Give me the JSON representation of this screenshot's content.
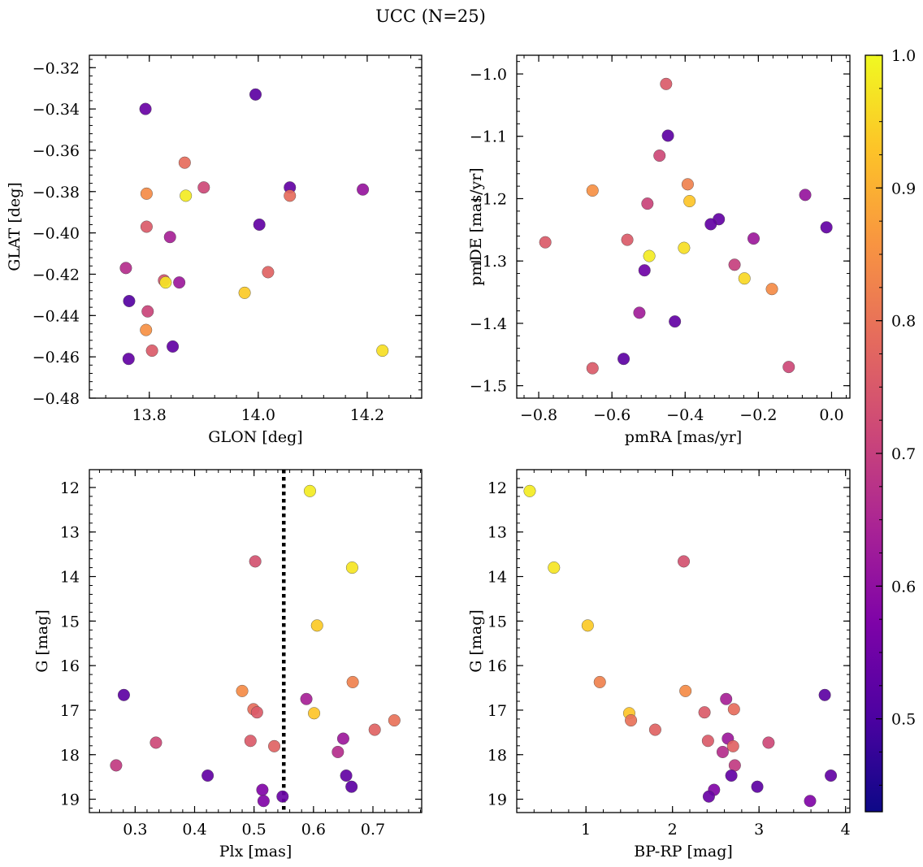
{
  "figure": {
    "title": "UCC (N=25)"
  },
  "colorbar": {
    "colormap": "plasma",
    "range": [
      0.43,
      1.0
    ],
    "ticks": [
      0.5,
      0.6,
      0.7,
      0.8,
      0.9,
      1.0
    ],
    "tick_labels": [
      "0.5",
      "0.6",
      "0.7",
      "0.8",
      "0.9",
      "1.0"
    ]
  },
  "chart_data": [
    {
      "type": "scatter",
      "xlabel": "GLON [deg]",
      "ylabel": "GLAT [deg]",
      "xlim": [
        13.69,
        14.3
      ],
      "ylim": [
        -0.48,
        -0.314
      ],
      "y_inverted": false,
      "xticks": [
        13.8,
        14.0,
        14.2
      ],
      "xtick_labels": [
        "13.8",
        "14.0",
        "14.2"
      ],
      "yticks": [
        -0.48,
        -0.46,
        -0.44,
        -0.42,
        -0.4,
        -0.38,
        -0.36,
        -0.34,
        -0.32
      ],
      "ytick_labels": [
        "−0.48",
        "−0.46",
        "−0.44",
        "−0.42",
        "−0.40",
        "−0.38",
        "−0.36",
        "−0.34",
        "−0.32"
      ],
      "points": [
        {
          "x": 13.793,
          "y": -0.34,
          "c": 0.48
        },
        {
          "x": 13.995,
          "y": -0.333,
          "c": 0.46
        },
        {
          "x": 13.865,
          "y": -0.366,
          "c": 0.76
        },
        {
          "x": 13.9,
          "y": -0.378,
          "c": 0.68
        },
        {
          "x": 14.058,
          "y": -0.378,
          "c": 0.47
        },
        {
          "x": 14.058,
          "y": -0.382,
          "c": 0.76
        },
        {
          "x": 13.795,
          "y": -0.381,
          "c": 0.82
        },
        {
          "x": 13.867,
          "y": -0.382,
          "c": 0.98
        },
        {
          "x": 14.192,
          "y": -0.379,
          "c": 0.56
        },
        {
          "x": 14.002,
          "y": -0.396,
          "c": 0.47
        },
        {
          "x": 13.795,
          "y": -0.397,
          "c": 0.72
        },
        {
          "x": 13.838,
          "y": -0.402,
          "c": 0.59
        },
        {
          "x": 13.757,
          "y": -0.417,
          "c": 0.62
        },
        {
          "x": 14.018,
          "y": -0.419,
          "c": 0.74
        },
        {
          "x": 13.827,
          "y": -0.423,
          "c": 0.7
        },
        {
          "x": 13.83,
          "y": -0.424,
          "c": 0.97
        },
        {
          "x": 13.855,
          "y": -0.424,
          "c": 0.57
        },
        {
          "x": 13.975,
          "y": -0.429,
          "c": 0.93
        },
        {
          "x": 13.763,
          "y": -0.433,
          "c": 0.45
        },
        {
          "x": 13.797,
          "y": -0.438,
          "c": 0.67
        },
        {
          "x": 13.794,
          "y": -0.447,
          "c": 0.83
        },
        {
          "x": 13.805,
          "y": -0.457,
          "c": 0.72
        },
        {
          "x": 13.843,
          "y": -0.455,
          "c": 0.47
        },
        {
          "x": 13.762,
          "y": -0.461,
          "c": 0.47
        },
        {
          "x": 14.228,
          "y": -0.457,
          "c": 0.96
        }
      ]
    },
    {
      "type": "scatter",
      "xlabel": "pmRA [mas/yr]",
      "ylabel": "pmDE [mas/yr]",
      "xlim": [
        -0.86,
        0.05
      ],
      "ylim": [
        -1.52,
        -0.97
      ],
      "y_inverted": false,
      "xticks": [
        -0.8,
        -0.6,
        -0.4,
        -0.2,
        0.0
      ],
      "xtick_labels": [
        "−0.8",
        "−0.6",
        "−0.4",
        "−0.2",
        "0.0"
      ],
      "yticks": [
        -1.5,
        -1.4,
        -1.3,
        -1.2,
        -1.1,
        -1.0
      ],
      "ytick_labels": [
        "−1.5",
        "−1.4",
        "−1.3",
        "−1.2",
        "−1.1",
        "−1.0"
      ],
      "points": [
        {
          "x": -0.452,
          "y": -1.016,
          "c": 0.72
        },
        {
          "x": -0.447,
          "y": -1.099,
          "c": 0.46
        },
        {
          "x": -0.47,
          "y": -1.131,
          "c": 0.68
        },
        {
          "x": -0.393,
          "y": -1.177,
          "c": 0.8
        },
        {
          "x": -0.653,
          "y": -1.187,
          "c": 0.83
        },
        {
          "x": -0.388,
          "y": -1.204,
          "c": 0.92
        },
        {
          "x": -0.072,
          "y": -1.194,
          "c": 0.56
        },
        {
          "x": -0.503,
          "y": -1.208,
          "c": 0.67
        },
        {
          "x": -0.308,
          "y": -1.233,
          "c": 0.47
        },
        {
          "x": -0.33,
          "y": -1.241,
          "c": 0.47
        },
        {
          "x": -0.014,
          "y": -1.246,
          "c": 0.47
        },
        {
          "x": -0.782,
          "y": -1.27,
          "c": 0.72
        },
        {
          "x": -0.558,
          "y": -1.266,
          "c": 0.72
        },
        {
          "x": -0.213,
          "y": -1.264,
          "c": 0.57
        },
        {
          "x": -0.403,
          "y": -1.279,
          "c": 0.96
        },
        {
          "x": -0.498,
          "y": -1.292,
          "c": 0.98
        },
        {
          "x": -0.265,
          "y": -1.306,
          "c": 0.66
        },
        {
          "x": -0.511,
          "y": -1.315,
          "c": 0.49
        },
        {
          "x": -0.238,
          "y": -1.328,
          "c": 0.95
        },
        {
          "x": -0.163,
          "y": -1.345,
          "c": 0.82
        },
        {
          "x": -0.525,
          "y": -1.383,
          "c": 0.58
        },
        {
          "x": -0.428,
          "y": -1.397,
          "c": 0.47
        },
        {
          "x": -0.568,
          "y": -1.457,
          "c": 0.46
        },
        {
          "x": -0.653,
          "y": -1.472,
          "c": 0.72
        },
        {
          "x": -0.117,
          "y": -1.47,
          "c": 0.68
        }
      ]
    },
    {
      "type": "scatter",
      "xlabel": "Plx [mas]",
      "ylabel": "G [mag]",
      "xlim": [
        0.223,
        0.782
      ],
      "ylim": [
        19.3,
        11.6
      ],
      "y_inverted": true,
      "vline": {
        "x": 0.55,
        "style": "dotted"
      },
      "xticks": [
        0.3,
        0.4,
        0.5,
        0.6,
        0.7
      ],
      "xtick_labels": [
        "0.3",
        "0.4",
        "0.5",
        "0.6",
        "0.7"
      ],
      "yticks": [
        12,
        13,
        14,
        15,
        16,
        17,
        18,
        19
      ],
      "ytick_labels": [
        "12",
        "13",
        "14",
        "15",
        "16",
        "17",
        "18",
        "19"
      ],
      "points": [
        {
          "x": 0.594,
          "y": 12.08,
          "c": 0.98
        },
        {
          "x": 0.502,
          "y": 13.66,
          "c": 0.7
        },
        {
          "x": 0.665,
          "y": 13.8,
          "c": 0.97
        },
        {
          "x": 0.606,
          "y": 15.1,
          "c": 0.93
        },
        {
          "x": 0.666,
          "y": 16.37,
          "c": 0.8
        },
        {
          "x": 0.281,
          "y": 16.66,
          "c": 0.46
        },
        {
          "x": 0.48,
          "y": 16.57,
          "c": 0.82
        },
        {
          "x": 0.588,
          "y": 16.75,
          "c": 0.59
        },
        {
          "x": 0.499,
          "y": 16.98,
          "c": 0.76
        },
        {
          "x": 0.505,
          "y": 17.05,
          "c": 0.72
        },
        {
          "x": 0.601,
          "y": 17.07,
          "c": 0.92
        },
        {
          "x": 0.736,
          "y": 17.23,
          "c": 0.77
        },
        {
          "x": 0.703,
          "y": 17.44,
          "c": 0.74
        },
        {
          "x": 0.65,
          "y": 17.64,
          "c": 0.57
        },
        {
          "x": 0.335,
          "y": 17.73,
          "c": 0.68
        },
        {
          "x": 0.494,
          "y": 17.69,
          "c": 0.72
        },
        {
          "x": 0.534,
          "y": 17.81,
          "c": 0.74
        },
        {
          "x": 0.641,
          "y": 17.94,
          "c": 0.62
        },
        {
          "x": 0.268,
          "y": 18.24,
          "c": 0.65
        },
        {
          "x": 0.422,
          "y": 18.47,
          "c": 0.47
        },
        {
          "x": 0.655,
          "y": 18.47,
          "c": 0.47
        },
        {
          "x": 0.664,
          "y": 18.72,
          "c": 0.46
        },
        {
          "x": 0.514,
          "y": 18.79,
          "c": 0.52
        },
        {
          "x": 0.548,
          "y": 18.94,
          "c": 0.48
        },
        {
          "x": 0.516,
          "y": 19.04,
          "c": 0.52
        }
      ]
    },
    {
      "type": "scatter",
      "xlabel": "BP-RP [mag]",
      "ylabel": "G [mag]",
      "xlim": [
        0.2,
        4.05
      ],
      "ylim": [
        19.3,
        11.6
      ],
      "y_inverted": true,
      "xticks": [
        1,
        2,
        3,
        4
      ],
      "xtick_labels": [
        "1",
        "2",
        "3",
        "4"
      ],
      "yticks": [
        12,
        13,
        14,
        15,
        16,
        17,
        18,
        19
      ],
      "ytick_labels": [
        "12",
        "13",
        "14",
        "15",
        "16",
        "17",
        "18",
        "19"
      ],
      "points": [
        {
          "x": 0.35,
          "y": 12.08,
          "c": 0.98
        },
        {
          "x": 2.13,
          "y": 13.66,
          "c": 0.7
        },
        {
          "x": 0.63,
          "y": 13.8,
          "c": 0.97
        },
        {
          "x": 1.02,
          "y": 15.1,
          "c": 0.93
        },
        {
          "x": 1.16,
          "y": 16.37,
          "c": 0.8
        },
        {
          "x": 3.76,
          "y": 16.66,
          "c": 0.46
        },
        {
          "x": 2.15,
          "y": 16.57,
          "c": 0.82
        },
        {
          "x": 2.62,
          "y": 16.75,
          "c": 0.59
        },
        {
          "x": 2.71,
          "y": 16.98,
          "c": 0.76
        },
        {
          "x": 2.37,
          "y": 17.05,
          "c": 0.72
        },
        {
          "x": 1.5,
          "y": 17.07,
          "c": 0.92
        },
        {
          "x": 1.52,
          "y": 17.23,
          "c": 0.77
        },
        {
          "x": 1.8,
          "y": 17.44,
          "c": 0.74
        },
        {
          "x": 2.64,
          "y": 17.64,
          "c": 0.57
        },
        {
          "x": 3.11,
          "y": 17.73,
          "c": 0.68
        },
        {
          "x": 2.41,
          "y": 17.69,
          "c": 0.72
        },
        {
          "x": 2.7,
          "y": 17.81,
          "c": 0.74
        },
        {
          "x": 2.58,
          "y": 17.94,
          "c": 0.62
        },
        {
          "x": 2.72,
          "y": 18.24,
          "c": 0.65
        },
        {
          "x": 3.83,
          "y": 18.47,
          "c": 0.47
        },
        {
          "x": 2.68,
          "y": 18.47,
          "c": 0.47
        },
        {
          "x": 2.98,
          "y": 18.72,
          "c": 0.46
        },
        {
          "x": 2.48,
          "y": 18.79,
          "c": 0.52
        },
        {
          "x": 2.42,
          "y": 18.94,
          "c": 0.48
        },
        {
          "x": 3.59,
          "y": 19.04,
          "c": 0.52
        }
      ]
    }
  ]
}
